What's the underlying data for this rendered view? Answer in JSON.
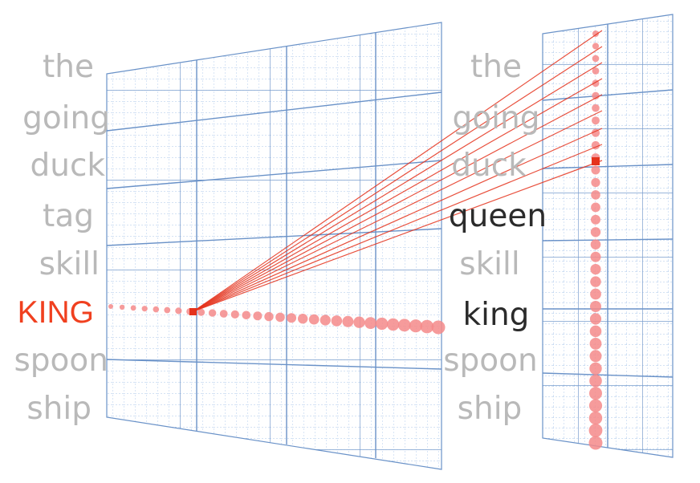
{
  "left_words": [
    "the",
    "going",
    "duck",
    "tag",
    "skill",
    "KING",
    "spoon",
    "ship"
  ],
  "right_words": [
    "the",
    "going",
    "duck",
    "queen",
    "skill",
    "king",
    "spoon",
    "ship"
  ],
  "highlighted_left": "KING",
  "highlighted_right": [
    "queen",
    "king"
  ],
  "colors": {
    "grid_minor": "#9bbde6",
    "grid_major": "#5a85c0",
    "dot": "#f48a8a",
    "line": "#e5321c",
    "word_gray": "#b9b9b9",
    "word_dark": "#2b2b2b",
    "word_red": "#f0401f"
  }
}
